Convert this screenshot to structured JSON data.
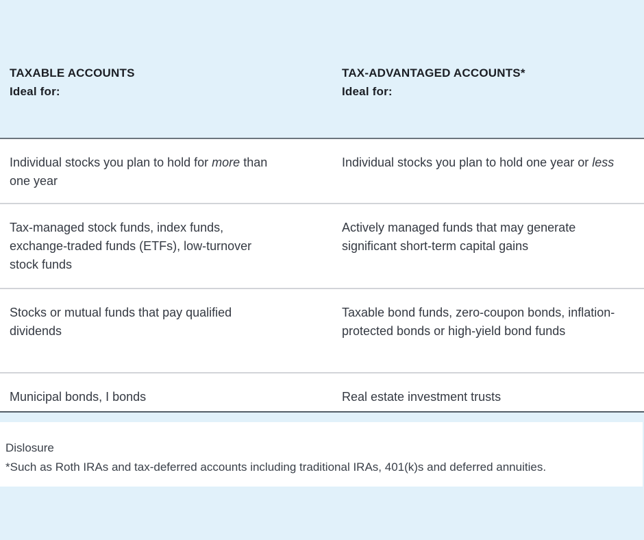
{
  "colors": {
    "page_background": "#e1f1fa",
    "row_background": "#ffffff",
    "header_text": "#1b1e24",
    "body_text": "#343942",
    "divider_light": "#d2d4d8",
    "divider_dark": "#5d6770"
  },
  "table": {
    "headers": [
      {
        "title": "TAXABLE ACCOUNTS",
        "subtitle": "Ideal for:"
      },
      {
        "title": "TAX-ADVANTAGED ACCOUNTS*",
        "subtitle": "Ideal for:"
      }
    ],
    "rows": [
      {
        "left": [
          {
            "t": "Individual stocks you plan to hold for "
          },
          {
            "t": "more",
            "i": true
          },
          {
            "t": " than one year"
          }
        ],
        "right": [
          {
            "t": "Individual stocks you plan to hold one year or "
          },
          {
            "t": "less",
            "i": true
          }
        ]
      },
      {
        "left": [
          {
            "t": "Tax-managed stock funds, index funds, exchange-traded funds (ETFs), low-turnover stock funds"
          }
        ],
        "right": [
          {
            "t": "Actively managed funds that may generate significant short-term capital gains"
          }
        ]
      },
      {
        "left": [
          {
            "t": "Stocks or mutual funds that pay qualified dividends"
          }
        ],
        "right": [
          {
            "t": "Taxable bond funds, zero-coupon bonds, inflation-protected bonds or high-yield bond funds"
          }
        ]
      },
      {
        "left": [
          {
            "t": "Municipal bonds, I bonds"
          }
        ],
        "right": [
          {
            "t": "Real estate investment trusts"
          }
        ]
      }
    ]
  },
  "disclosure": {
    "heading": "Dislosure",
    "text": "*Such as Roth IRAs and tax-deferred accounts including traditional IRAs, 401(k)s and deferred annuities."
  }
}
